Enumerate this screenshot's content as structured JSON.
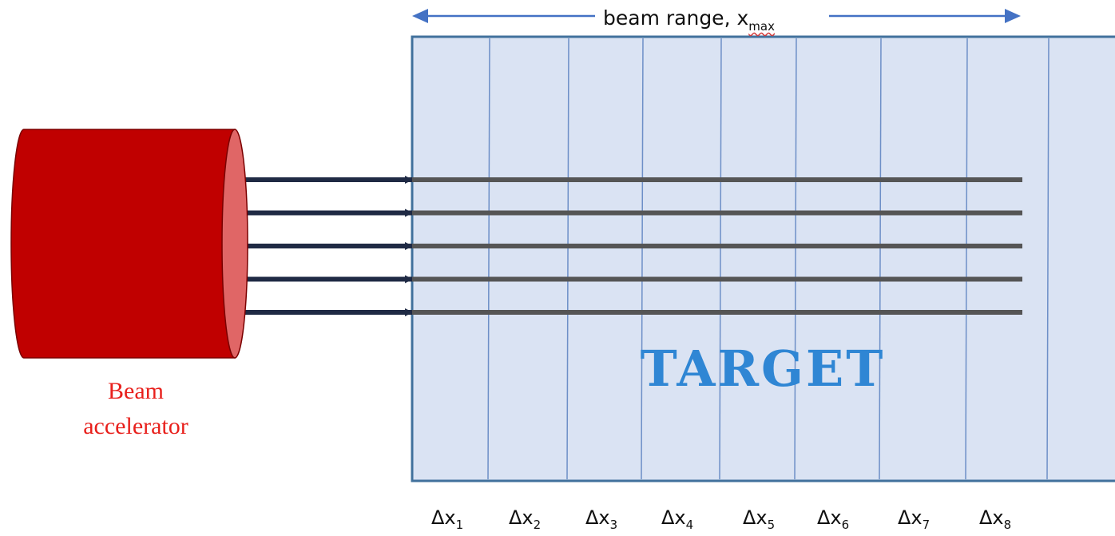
{
  "top_label": {
    "text": "beam range, x",
    "subscript": "max"
  },
  "accelerator": {
    "line1": "Beam",
    "line2": "accelerator"
  },
  "target": {
    "label": "TARGET"
  },
  "segments": [
    {
      "prefix": "Δx",
      "sub": "1"
    },
    {
      "prefix": "Δx",
      "sub": "2"
    },
    {
      "prefix": "Δx",
      "sub": "3"
    },
    {
      "prefix": "Δx",
      "sub": "4"
    },
    {
      "prefix": "Δx",
      "sub": "5"
    },
    {
      "prefix": "Δx",
      "sub": "6"
    },
    {
      "prefix": "Δx",
      "sub": "7"
    },
    {
      "prefix": "Δx",
      "sub": "8"
    }
  ],
  "beam_count": 5,
  "colors": {
    "accelerator_body": "#c00000",
    "accelerator_face": "#e06666",
    "target_fill": "#dae3f3",
    "target_border": "#41719c",
    "divider": "#6d8fc7",
    "beam_arrow": "#1f2a44",
    "beam_track": "#555555",
    "range_arrow": "#4472c4",
    "target_text": "#2f86d4",
    "accelerator_text": "#e8201c"
  }
}
